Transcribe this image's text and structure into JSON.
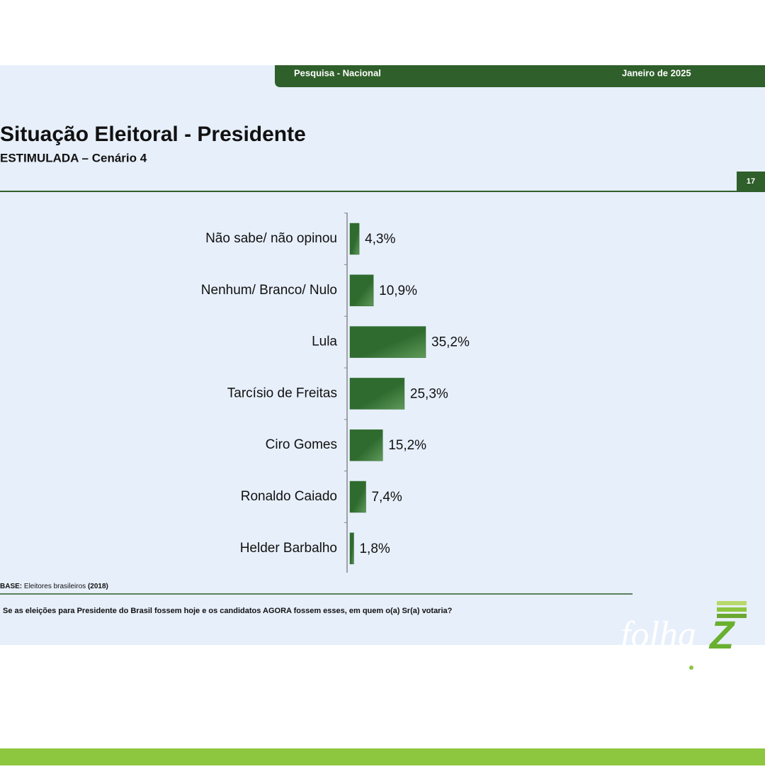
{
  "header": {
    "left": "Pesquisa - Nacional",
    "right": "Janeiro de 2025"
  },
  "page_number": "17",
  "chart_data": {
    "type": "hbar",
    "title": "Situação Eleitoral - Presidente",
    "subtitle": "ESTIMULADA – Cenário 4",
    "categories": [
      "Não sabe/ não opinou",
      "Nenhum/ Branco/ Nulo",
      "Lula",
      "Tarcísio de Freitas",
      "Ciro Gomes",
      "Ronaldo Caiado",
      "Helder Barbalho"
    ],
    "values": [
      4.3,
      10.9,
      35.2,
      25.3,
      15.2,
      7.4,
      1.8
    ],
    "value_labels": [
      "4,3%",
      "10,9%",
      "35,2%",
      "25,3%",
      "15,2%",
      "7,4%",
      "1,8%"
    ],
    "color": "#2f6b2f"
  },
  "base": {
    "label": "BASE:",
    "text": "Eleitores brasileiros",
    "year": "(2018)"
  },
  "question": "Se as eleições para Presidente do Brasil fossem hoje e os candidatos AGORA fossem esses, em quem o(a) Sr(a) votaria?",
  "logo": {
    "word": "folha",
    "letter": "Z"
  }
}
